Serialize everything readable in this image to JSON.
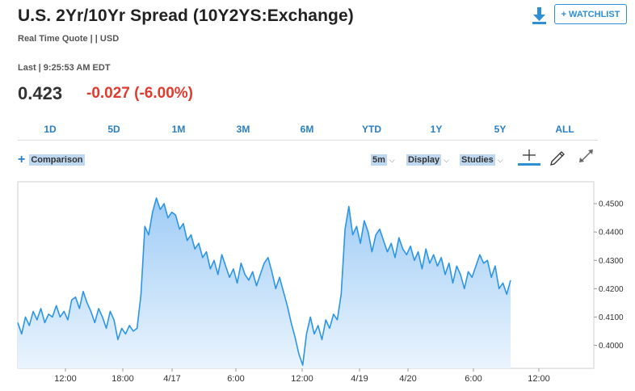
{
  "header": {
    "title": "U.S. 2Yr/10Yr Spread (10Y2YS:Exchange)",
    "subtitle": "Real Time Quote | | USD",
    "watchlist_label": "+ WATCHLIST"
  },
  "quote": {
    "last_label": "Last | 9:25:53 AM EDT",
    "price": "0.423",
    "change": "-0.027 (-6.00%)",
    "change_color": "#e03b2e"
  },
  "ranges": [
    "1D",
    "5D",
    "1M",
    "3M",
    "6M",
    "YTD",
    "1Y",
    "5Y",
    "ALL"
  ],
  "toolbar": {
    "comparison_label": "Comparison",
    "interval_label": "5m",
    "display_label": "Display",
    "studies_label": "Studies"
  },
  "colors": {
    "accent": "#2f8fd6",
    "line": "#2b95e8",
    "fill_top": "#9fccf6",
    "fill_bottom": "#eaf4fd"
  },
  "chart_data": {
    "type": "area",
    "ylim": [
      0.393,
      0.4566
    ],
    "y_ticks": [
      "0.4500",
      "0.4400",
      "0.4300",
      "0.4200",
      "0.4100",
      "0.4000"
    ],
    "x_ticks": [
      "12:00",
      "18:00",
      "4/17",
      "6:00",
      "12:00",
      "4/19",
      "4/20",
      "6:00",
      "12:00"
    ],
    "grid": false,
    "series": [
      {
        "values": [
          0.408,
          0.404,
          0.41,
          0.407,
          0.412,
          0.409,
          0.413,
          0.408,
          0.411,
          0.41,
          0.414,
          0.41,
          0.412,
          0.409,
          0.416,
          0.417,
          0.413,
          0.419,
          0.415,
          0.412,
          0.408,
          0.413,
          0.41,
          0.406,
          0.412,
          0.409,
          0.402,
          0.406,
          0.404,
          0.407,
          0.405,
          0.406,
          0.418,
          0.442,
          0.439,
          0.447,
          0.452,
          0.448,
          0.45,
          0.445,
          0.447,
          0.446,
          0.441,
          0.443,
          0.437,
          0.439,
          0.434,
          0.436,
          0.431,
          0.433,
          0.427,
          0.43,
          0.425,
          0.432,
          0.428,
          0.424,
          0.427,
          0.422,
          0.429,
          0.425,
          0.423,
          0.426,
          0.421,
          0.425,
          0.429,
          0.431,
          0.426,
          0.42,
          0.424,
          0.419,
          0.414,
          0.408,
          0.403,
          0.397,
          0.393,
          0.404,
          0.41,
          0.404,
          0.407,
          0.402,
          0.409,
          0.406,
          0.411,
          0.409,
          0.418,
          0.441,
          0.449,
          0.439,
          0.442,
          0.436,
          0.444,
          0.44,
          0.433,
          0.439,
          0.441,
          0.437,
          0.433,
          0.436,
          0.431,
          0.438,
          0.434,
          0.432,
          0.435,
          0.43,
          0.433,
          0.427,
          0.434,
          0.429,
          0.432,
          0.428,
          0.431,
          0.425,
          0.429,
          0.422,
          0.428,
          0.425,
          0.42,
          0.426,
          0.424,
          0.428,
          0.432,
          0.429,
          0.43,
          0.424,
          0.428,
          0.42,
          0.422,
          0.418,
          0.423
        ]
      }
    ]
  }
}
